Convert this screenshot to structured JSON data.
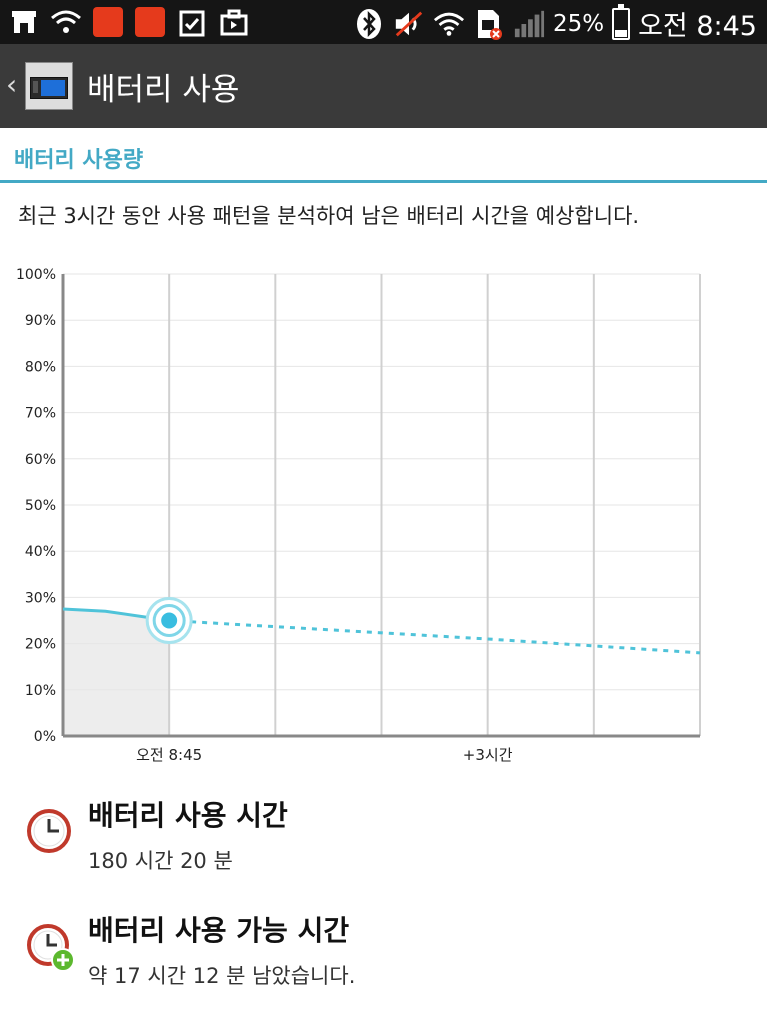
{
  "status_bar": {
    "left_icons": [
      "store-icon",
      "wifi-question-icon",
      "red-app-icon",
      "red-app-icon",
      "clipboard-check-icon",
      "briefcase-icon"
    ],
    "right_icons": [
      "bluetooth-icon",
      "mute-icon",
      "wifi-icon",
      "sim-error-icon",
      "signal-icon"
    ],
    "battery_percent": "25%",
    "time": "오전 8:45"
  },
  "action_bar": {
    "title": "배터리 사용"
  },
  "section": {
    "title": "배터리 사용량",
    "description": "최근 3시간 동안 사용 패턴을 분석하여 남은 배터리 시간을 예상합니다."
  },
  "chart_data": {
    "type": "line",
    "title": "",
    "ylim": [
      0,
      100
    ],
    "y_ticks": [
      "100%",
      "90%",
      "80%",
      "70%",
      "60%",
      "50%",
      "40%",
      "30%",
      "20%",
      "10%",
      "0%"
    ],
    "x_labels": [
      "오전 8:45",
      "+3시간"
    ],
    "series": [
      {
        "style": "solid",
        "color": "#4fc3d9",
        "points": [
          [
            -1,
            27.5
          ],
          [
            -0.6,
            27
          ],
          [
            0,
            25
          ]
        ]
      },
      {
        "style": "dashed",
        "color": "#4fc3d9",
        "points": [
          [
            0,
            25
          ],
          [
            3,
            21
          ],
          [
            5,
            18
          ]
        ]
      }
    ],
    "current_marker": {
      "x": 0,
      "y": 25
    }
  },
  "usage_time": {
    "title": "배터리 사용 시간",
    "value": "180 시간 20 분"
  },
  "remaining_time": {
    "title": "배터리 사용 가능 시간",
    "value": "약 17 시간 12 분 남았습니다."
  },
  "colors": {
    "accent": "#43a9c5",
    "line": "#4fc3d9",
    "clock_red": "#c0392b",
    "plus_green": "#5cb82e"
  }
}
